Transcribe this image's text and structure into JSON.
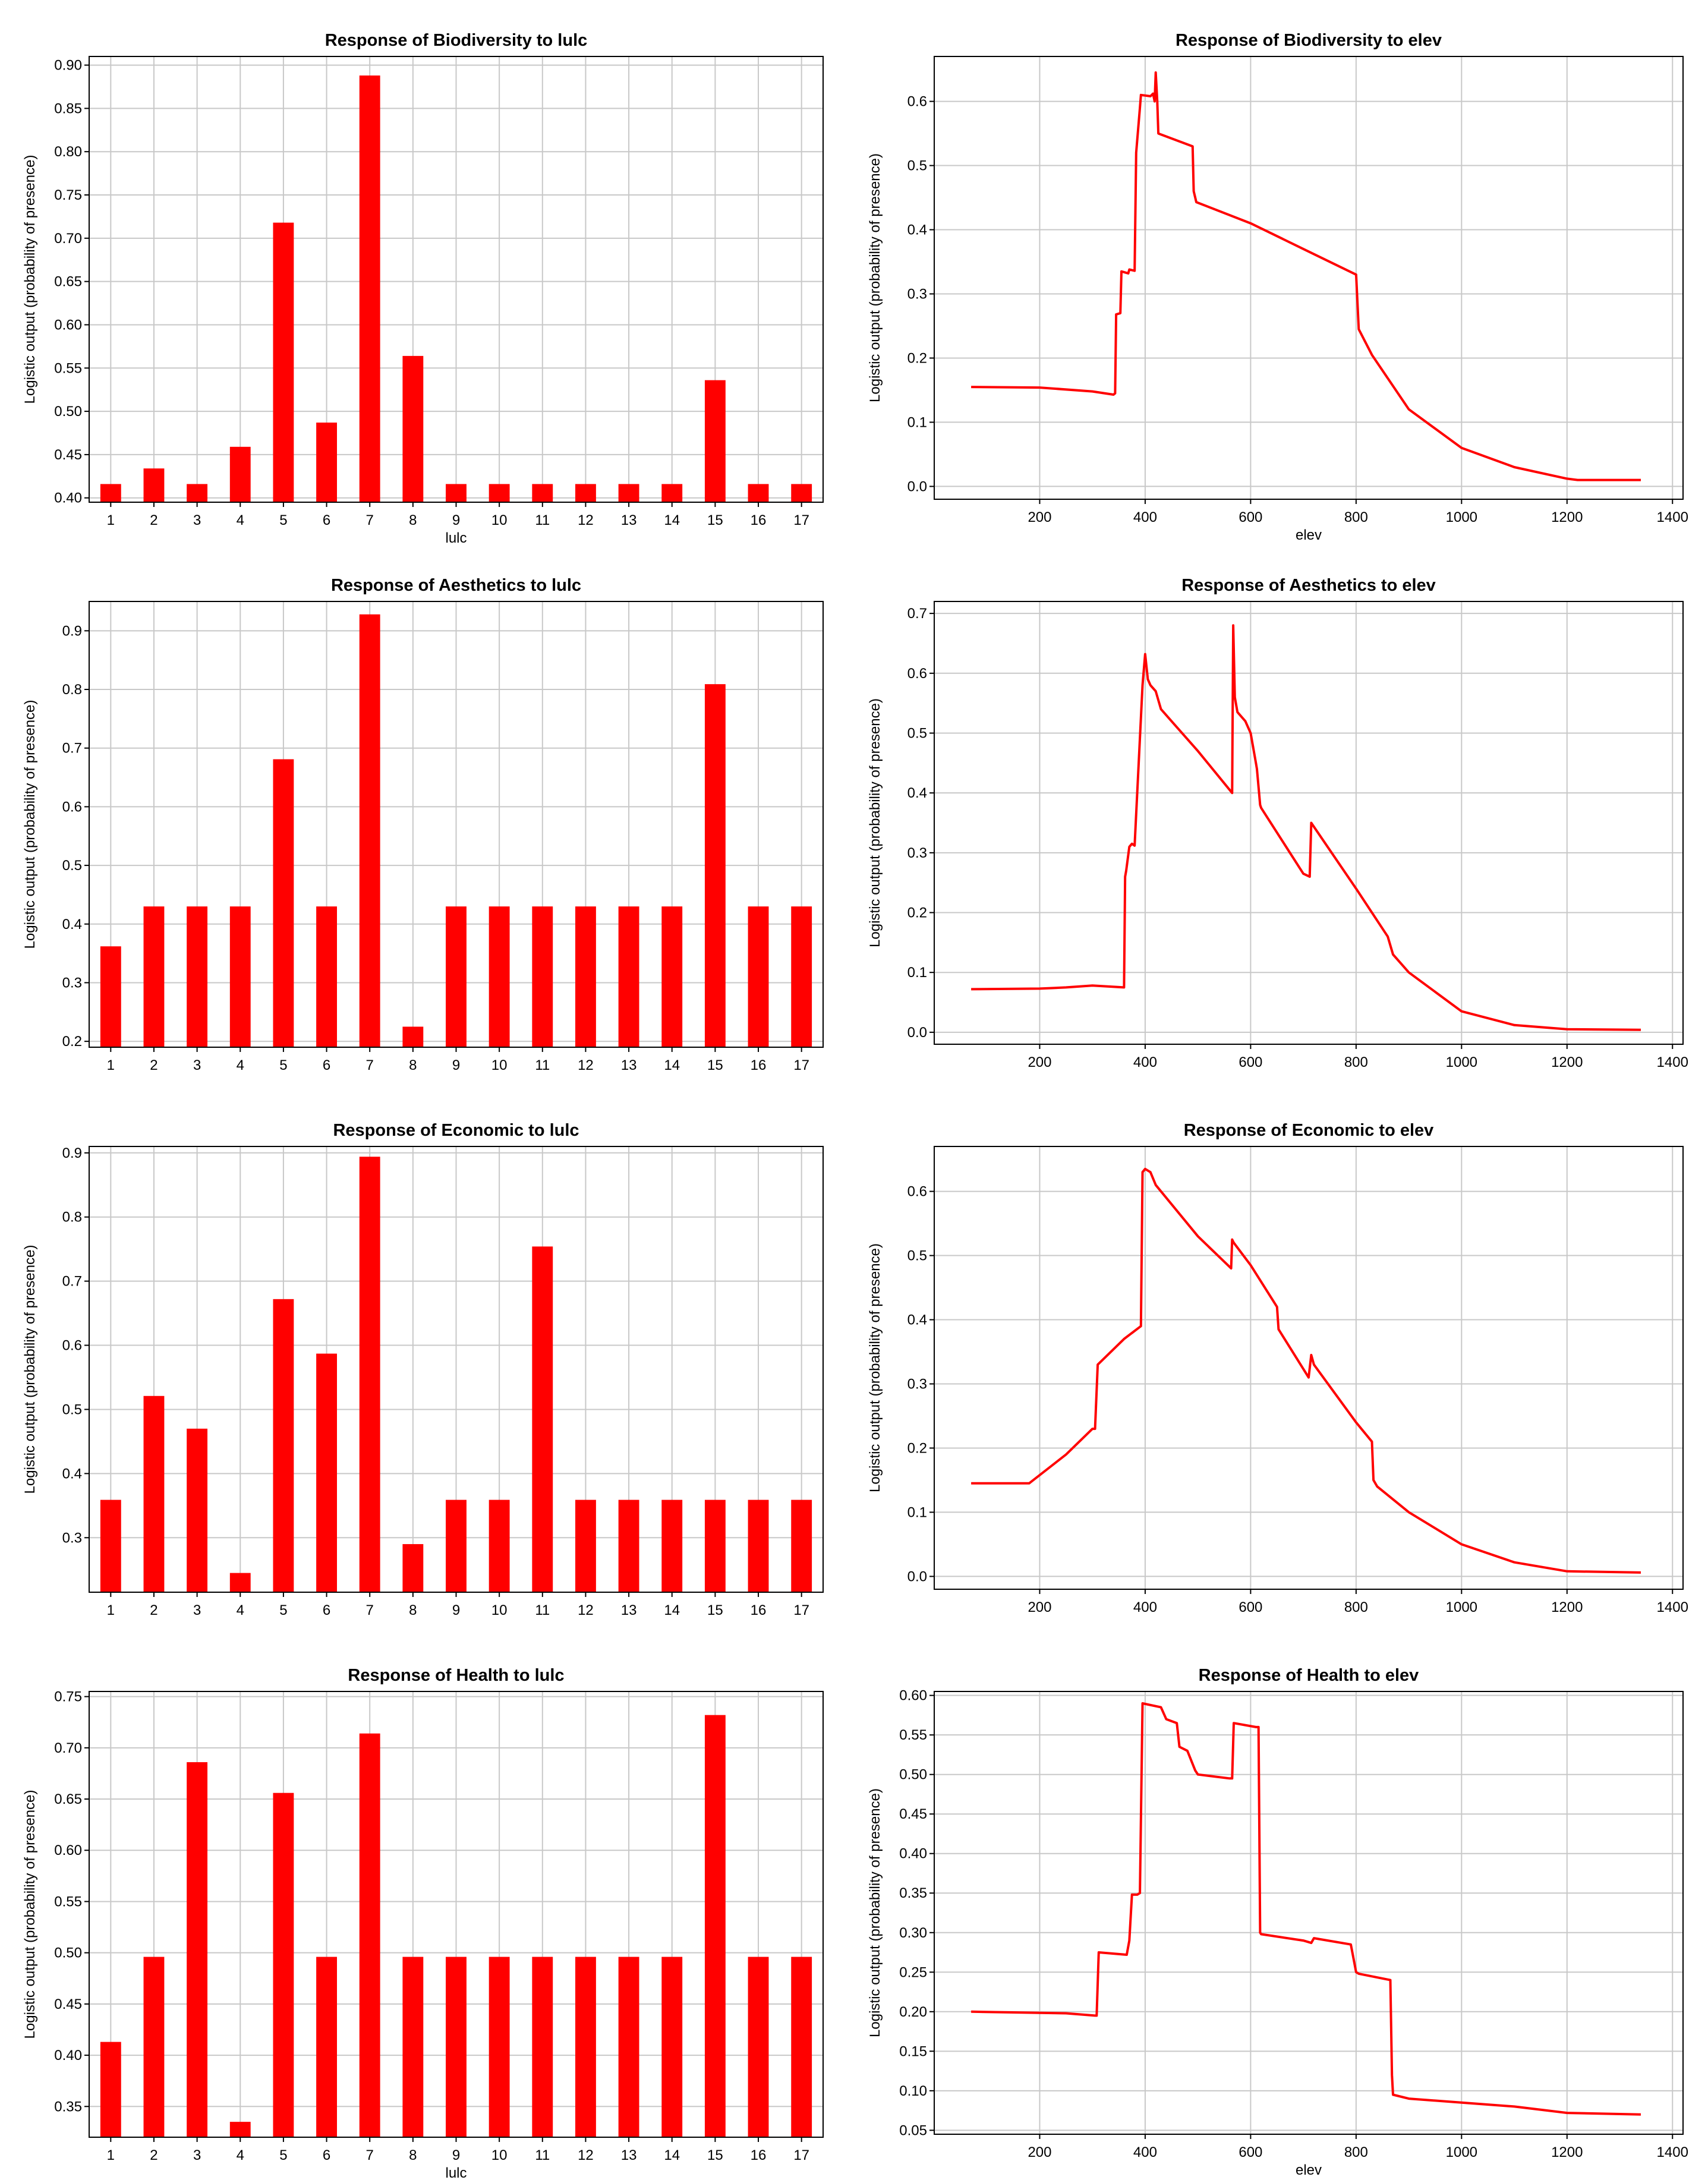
{
  "colors": {
    "series": "#ff0000",
    "grid": "#c8c8c8",
    "frame": "#000000",
    "background": "#ffffff"
  },
  "chart_data": [
    {
      "id": "bio-lulc",
      "type": "bar",
      "title": "Response of Biodiversity to lulc",
      "xlabel": "lulc",
      "ylabel": "Logistic output (probability of presence)",
      "categories": [
        "1",
        "2",
        "3",
        "4",
        "5",
        "6",
        "7",
        "8",
        "9",
        "10",
        "11",
        "12",
        "13",
        "14",
        "15",
        "16",
        "17"
      ],
      "values": [
        0.416,
        0.434,
        0.416,
        0.459,
        0.718,
        0.487,
        0.888,
        0.564,
        0.416,
        0.416,
        0.416,
        0.416,
        0.416,
        0.416,
        0.536,
        0.416,
        0.416
      ],
      "ylim": [
        0.395,
        0.91
      ],
      "yticks": [
        0.4,
        0.45,
        0.5,
        0.55,
        0.6,
        0.65,
        0.7,
        0.75,
        0.8,
        0.85,
        0.9
      ],
      "ytick_labels": [
        "0.40",
        "0.45",
        "0.50",
        "0.55",
        "0.60",
        "0.65",
        "0.70",
        "0.75",
        "0.80",
        "0.85",
        "0.90"
      ],
      "grid": true
    },
    {
      "id": "bio-elev",
      "type": "line",
      "title": "Response of Biodiversity to elev",
      "xlabel": "elev",
      "ylabel": "Logistic output (probability of presence)",
      "xlim": [
        0,
        1420
      ],
      "ylim": [
        -0.02,
        0.67
      ],
      "xticks": [
        200,
        400,
        600,
        800,
        1000,
        1200,
        1400
      ],
      "xtick_labels": [
        "200",
        "400",
        "600",
        "800",
        "1000",
        "1200",
        "1400"
      ],
      "yticks": [
        0.0,
        0.1,
        0.2,
        0.3,
        0.4,
        0.5,
        0.6
      ],
      "ytick_labels": [
        "0.0",
        "0.1",
        "0.2",
        "0.3",
        "0.4",
        "0.5",
        "0.6"
      ],
      "x": [
        70,
        200,
        300,
        340,
        343,
        345,
        353,
        355,
        368,
        370,
        380,
        383,
        390,
        392,
        410,
        415,
        418,
        420,
        423,
        425,
        490,
        492,
        497,
        600,
        700,
        800,
        803,
        805,
        830,
        900,
        1000,
        1100,
        1200,
        1220,
        1340
      ],
      "y": [
        0.155,
        0.154,
        0.148,
        0.143,
        0.145,
        0.268,
        0.27,
        0.335,
        0.332,
        0.338,
        0.336,
        0.52,
        0.59,
        0.61,
        0.608,
        0.612,
        0.6,
        0.645,
        0.6,
        0.55,
        0.53,
        0.46,
        0.443,
        0.41,
        0.37,
        0.33,
        0.28,
        0.245,
        0.205,
        0.12,
        0.06,
        0.03,
        0.012,
        0.01,
        0.01
      ],
      "grid": true
    },
    {
      "id": "aes-lulc",
      "type": "bar",
      "title": "Response of Aesthetics to lulc",
      "xlabel": "",
      "ylabel": "Logistic output (probability of presence)",
      "categories": [
        "1",
        "2",
        "3",
        "4",
        "5",
        "6",
        "7",
        "8",
        "9",
        "10",
        "11",
        "12",
        "13",
        "14",
        "15",
        "16",
        "17"
      ],
      "values": [
        0.362,
        0.43,
        0.43,
        0.43,
        0.681,
        0.43,
        0.928,
        0.225,
        0.43,
        0.43,
        0.43,
        0.43,
        0.43,
        0.43,
        0.809,
        0.43,
        0.43
      ],
      "ylim": [
        0.19,
        0.95
      ],
      "yticks": [
        0.2,
        0.3,
        0.4,
        0.5,
        0.6,
        0.7,
        0.8,
        0.9
      ],
      "ytick_labels": [
        "0.2",
        "0.3",
        "0.4",
        "0.5",
        "0.6",
        "0.7",
        "0.8",
        "0.9"
      ],
      "grid": true
    },
    {
      "id": "aes-elev",
      "type": "line",
      "title": "Response of Aesthetics to elev",
      "xlabel": "",
      "ylabel": "Logistic output (probability of presence)",
      "xlim": [
        0,
        1420
      ],
      "ylim": [
        -0.02,
        0.72
      ],
      "xticks": [
        200,
        400,
        600,
        800,
        1000,
        1200,
        1400
      ],
      "xtick_labels": [
        "200",
        "400",
        "600",
        "800",
        "1000",
        "1200",
        "1400"
      ],
      "yticks": [
        0.0,
        0.1,
        0.2,
        0.3,
        0.4,
        0.5,
        0.6,
        0.7
      ],
      "ytick_labels": [
        "0.0",
        "0.1",
        "0.2",
        "0.3",
        "0.4",
        "0.5",
        "0.6",
        "0.7"
      ],
      "x": [
        70,
        200,
        250,
        300,
        360,
        362,
        364,
        370,
        375,
        380,
        395,
        400,
        405,
        410,
        420,
        430,
        450,
        500,
        565,
        567,
        570,
        575,
        590,
        600,
        610,
        612,
        618,
        620,
        700,
        712,
        715,
        800,
        860,
        870,
        900,
        1000,
        1100,
        1200,
        1340
      ],
      "y": [
        0.072,
        0.073,
        0.075,
        0.078,
        0.075,
        0.26,
        0.27,
        0.31,
        0.315,
        0.312,
        0.58,
        0.632,
        0.59,
        0.58,
        0.57,
        0.54,
        0.52,
        0.47,
        0.4,
        0.68,
        0.56,
        0.535,
        0.52,
        0.5,
        0.45,
        0.44,
        0.38,
        0.375,
        0.265,
        0.26,
        0.35,
        0.24,
        0.16,
        0.13,
        0.1,
        0.035,
        0.012,
        0.005,
        0.004
      ],
      "grid": true
    },
    {
      "id": "eco-lulc",
      "type": "bar",
      "title": "Response of Economic to lulc",
      "xlabel": "",
      "ylabel": "Logistic output (probability of presence)",
      "categories": [
        "1",
        "2",
        "3",
        "4",
        "5",
        "6",
        "7",
        "8",
        "9",
        "10",
        "11",
        "12",
        "13",
        "14",
        "15",
        "16",
        "17"
      ],
      "values": [
        0.359,
        0.521,
        0.47,
        0.245,
        0.672,
        0.587,
        0.894,
        0.29,
        0.359,
        0.359,
        0.754,
        0.359,
        0.359,
        0.359,
        0.359,
        0.359,
        0.359
      ],
      "ylim": [
        0.215,
        0.91
      ],
      "yticks": [
        0.3,
        0.4,
        0.5,
        0.6,
        0.7,
        0.8,
        0.9
      ],
      "ytick_labels": [
        "0.3",
        "0.4",
        "0.5",
        "0.6",
        "0.7",
        "0.8",
        "0.9"
      ],
      "grid": true
    },
    {
      "id": "eco-elev",
      "type": "line",
      "title": "Response of Economic to elev",
      "xlabel": "",
      "ylabel": "Logistic output (probability of presence)",
      "xlim": [
        0,
        1420
      ],
      "ylim": [
        -0.02,
        0.67
      ],
      "xticks": [
        200,
        400,
        600,
        800,
        1000,
        1200,
        1400
      ],
      "xtick_labels": [
        "200",
        "400",
        "600",
        "800",
        "1000",
        "1200",
        "1400"
      ],
      "yticks": [
        0.0,
        0.1,
        0.2,
        0.3,
        0.4,
        0.5,
        0.6
      ],
      "ytick_labels": [
        "0.0",
        "0.1",
        "0.2",
        "0.3",
        "0.4",
        "0.5",
        "0.6"
      ],
      "x": [
        70,
        180,
        250,
        300,
        305,
        310,
        360,
        392,
        395,
        400,
        410,
        420,
        500,
        563,
        565,
        568,
        600,
        650,
        653,
        710,
        715,
        720,
        800,
        830,
        833,
        840,
        900,
        1000,
        1100,
        1200,
        1340
      ],
      "y": [
        0.145,
        0.145,
        0.19,
        0.23,
        0.23,
        0.33,
        0.37,
        0.39,
        0.63,
        0.635,
        0.63,
        0.61,
        0.53,
        0.48,
        0.525,
        0.52,
        0.485,
        0.42,
        0.385,
        0.31,
        0.345,
        0.33,
        0.24,
        0.21,
        0.15,
        0.14,
        0.1,
        0.05,
        0.022,
        0.008,
        0.006
      ],
      "grid": true
    },
    {
      "id": "hea-lulc",
      "type": "bar",
      "title": "Response of Health to lulc",
      "xlabel": "lulc",
      "ylabel": "Logistic output (probability of presence)",
      "categories": [
        "1",
        "2",
        "3",
        "4",
        "5",
        "6",
        "7",
        "8",
        "9",
        "10",
        "11",
        "12",
        "13",
        "14",
        "15",
        "16",
        "17"
      ],
      "values": [
        0.413,
        0.496,
        0.686,
        0.335,
        0.656,
        0.496,
        0.714,
        0.496,
        0.496,
        0.496,
        0.496,
        0.496,
        0.496,
        0.496,
        0.732,
        0.496,
        0.496
      ],
      "ylim": [
        0.32,
        0.755
      ],
      "yticks": [
        0.35,
        0.4,
        0.45,
        0.5,
        0.55,
        0.6,
        0.65,
        0.7,
        0.75
      ],
      "ytick_labels": [
        "0.35",
        "0.40",
        "0.45",
        "0.50",
        "0.55",
        "0.60",
        "0.65",
        "0.70",
        "0.75"
      ],
      "grid": true
    },
    {
      "id": "hea-elev",
      "type": "line",
      "title": "Response of Health to elev",
      "xlabel": "elev",
      "ylabel": "Logistic output (probability of presence)",
      "xlim": [
        0,
        1420
      ],
      "ylim": [
        0.045,
        0.605
      ],
      "xticks": [
        200,
        400,
        600,
        800,
        1000,
        1200,
        1400
      ],
      "xtick_labels": [
        "200",
        "400",
        "600",
        "800",
        "1000",
        "1200",
        "1400"
      ],
      "yticks": [
        0.05,
        0.1,
        0.15,
        0.2,
        0.25,
        0.3,
        0.35,
        0.4,
        0.45,
        0.5,
        0.55,
        0.6
      ],
      "ytick_labels": [
        "0.05",
        "0.10",
        "0.15",
        "0.20",
        "0.25",
        "0.30",
        "0.35",
        "0.40",
        "0.45",
        "0.50",
        "0.55",
        "0.60"
      ],
      "x": [
        70,
        250,
        305,
        308,
        312,
        365,
        370,
        375,
        385,
        390,
        395,
        430,
        440,
        460,
        465,
        480,
        495,
        500,
        560,
        565,
        568,
        610,
        615,
        618,
        620,
        700,
        715,
        720,
        790,
        800,
        805,
        865,
        868,
        870,
        900,
        1000,
        1100,
        1200,
        1340
      ],
      "y": [
        0.2,
        0.198,
        0.195,
        0.195,
        0.275,
        0.272,
        0.29,
        0.348,
        0.348,
        0.35,
        0.59,
        0.585,
        0.57,
        0.565,
        0.535,
        0.53,
        0.505,
        0.5,
        0.495,
        0.495,
        0.565,
        0.56,
        0.56,
        0.3,
        0.298,
        0.29,
        0.287,
        0.293,
        0.285,
        0.25,
        0.248,
        0.24,
        0.12,
        0.095,
        0.09,
        0.085,
        0.08,
        0.072,
        0.07
      ],
      "grid": true
    }
  ]
}
